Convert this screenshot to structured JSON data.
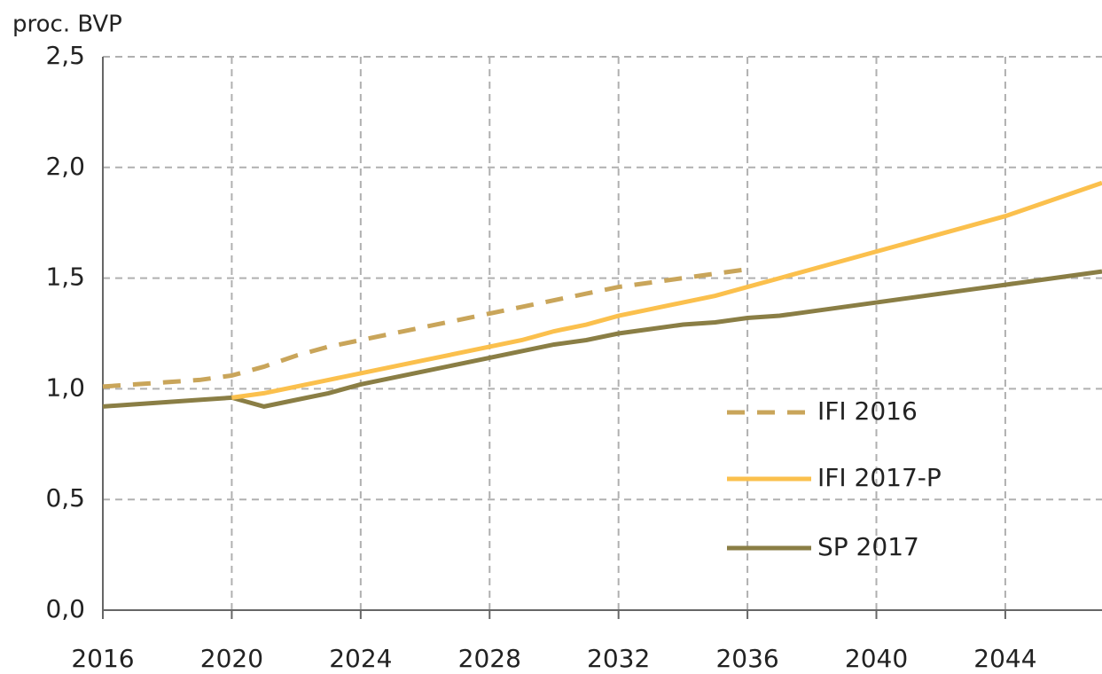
{
  "chart_data": {
    "type": "line",
    "y_axis_label": "proc. BVP",
    "x": [
      2016,
      2017,
      2018,
      2019,
      2020,
      2021,
      2022,
      2023,
      2024,
      2025,
      2026,
      2027,
      2028,
      2029,
      2030,
      2031,
      2032,
      2033,
      2034,
      2035,
      2036,
      2037,
      2038,
      2039,
      2040,
      2041,
      2042,
      2043,
      2044,
      2045,
      2046,
      2047
    ],
    "series": [
      {
        "name": "IFI 2016",
        "color": "#c9a55a",
        "dashed": true,
        "values": [
          1.01,
          1.02,
          1.03,
          1.04,
          1.06,
          1.1,
          1.15,
          1.19,
          1.22,
          1.25,
          1.28,
          1.31,
          1.34,
          1.37,
          1.4,
          1.43,
          1.46,
          1.48,
          1.5,
          1.52,
          1.54,
          null,
          null,
          null,
          null,
          null,
          null,
          null,
          null,
          null,
          null,
          null
        ]
      },
      {
        "name": "IFI 2017-P",
        "color": "#fbc04d",
        "dashed": false,
        "values": [
          null,
          null,
          null,
          null,
          0.96,
          0.98,
          1.01,
          1.04,
          1.07,
          1.1,
          1.13,
          1.16,
          1.19,
          1.22,
          1.26,
          1.29,
          1.33,
          1.36,
          1.39,
          1.42,
          1.46,
          1.5,
          1.54,
          1.58,
          1.62,
          1.66,
          1.7,
          1.74,
          1.78,
          1.83,
          1.88,
          1.93
        ]
      },
      {
        "name": "SP 2017",
        "color": "#8a7e45",
        "dashed": false,
        "values": [
          0.92,
          0.93,
          0.94,
          0.95,
          0.96,
          0.92,
          0.95,
          0.98,
          1.02,
          1.05,
          1.08,
          1.11,
          1.14,
          1.17,
          1.2,
          1.22,
          1.25,
          1.27,
          1.29,
          1.3,
          1.32,
          1.33,
          1.35,
          1.37,
          1.39,
          1.41,
          1.43,
          1.45,
          1.47,
          1.49,
          1.51,
          1.53
        ]
      }
    ],
    "xlim": [
      2016,
      2047
    ],
    "xticks": [
      2016,
      2020,
      2024,
      2028,
      2032,
      2036,
      2040,
      2044
    ],
    "ylim": [
      0,
      2.5
    ],
    "yticks": [
      {
        "value": 0,
        "label": "0,0"
      },
      {
        "value": 0.5,
        "label": "0,5"
      },
      {
        "value": 1,
        "label": "1,0"
      },
      {
        "value": 1.5,
        "label": "1,5"
      },
      {
        "value": 2,
        "label": "2,0"
      },
      {
        "value": 2.5,
        "label": "2,5"
      }
    ],
    "grid": true,
    "legend": "right"
  }
}
